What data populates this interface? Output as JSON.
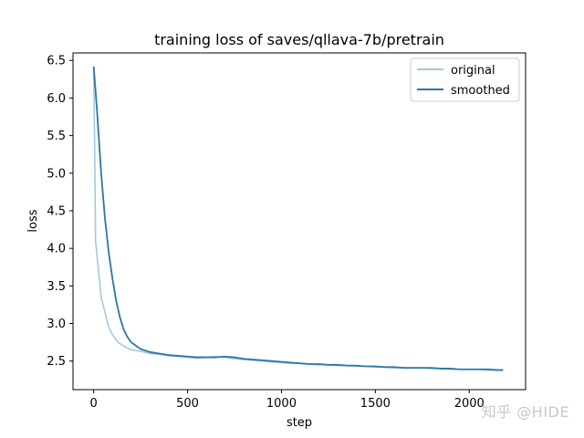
{
  "chart_data": {
    "type": "line",
    "title": "training loss of saves/qllava-7b/pretrain",
    "xlabel": "step",
    "ylabel": "loss",
    "xlim": [
      -110,
      2300
    ],
    "ylim": [
      2.12,
      6.6
    ],
    "xticks": [
      0,
      500,
      1000,
      1500,
      2000
    ],
    "yticks": [
      2.5,
      3.0,
      3.5,
      4.0,
      4.5,
      5.0,
      5.5,
      6.0,
      6.5
    ],
    "ytick_labels": [
      "2.5",
      "3.0",
      "3.5",
      "4.0",
      "4.5",
      "5.0",
      "5.5",
      "6.0",
      "6.5"
    ],
    "legend_position": "upper-right",
    "series": [
      {
        "name": "original",
        "color": "#a6c8dc",
        "x": [
          0,
          5,
          10,
          20,
          30,
          40,
          60,
          80,
          100,
          130,
          160,
          200,
          250,
          300,
          350,
          400,
          450,
          500,
          550,
          600,
          650,
          700,
          750,
          800,
          850,
          900,
          950,
          1000,
          1050,
          1100,
          1150,
          1200,
          1250,
          1300,
          1350,
          1400,
          1450,
          1500,
          1550,
          1600,
          1650,
          1700,
          1750,
          1800,
          1850,
          1900,
          1950,
          2000,
          2050,
          2100,
          2150,
          2180
        ],
        "values": [
          6.4,
          5.4,
          4.1,
          3.85,
          3.6,
          3.35,
          3.15,
          2.95,
          2.85,
          2.75,
          2.7,
          2.65,
          2.63,
          2.6,
          2.59,
          2.57,
          2.56,
          2.55,
          2.54,
          2.55,
          2.56,
          2.55,
          2.53,
          2.52,
          2.51,
          2.5,
          2.49,
          2.48,
          2.47,
          2.47,
          2.46,
          2.45,
          2.45,
          2.44,
          2.44,
          2.43,
          2.43,
          2.42,
          2.42,
          2.41,
          2.41,
          2.41,
          2.41,
          2.4,
          2.4,
          2.39,
          2.39,
          2.39,
          2.39,
          2.38,
          2.38,
          2.38
        ]
      },
      {
        "name": "smoothed",
        "color": "#2a77a8",
        "x": [
          0,
          10,
          20,
          40,
          60,
          80,
          100,
          120,
          140,
          160,
          180,
          200,
          250,
          300,
          350,
          400,
          450,
          500,
          550,
          600,
          650,
          700,
          750,
          800,
          850,
          900,
          950,
          1000,
          1050,
          1100,
          1150,
          1200,
          1250,
          1300,
          1350,
          1400,
          1450,
          1500,
          1550,
          1600,
          1650,
          1700,
          1750,
          1800,
          1850,
          1900,
          1950,
          2000,
          2050,
          2100,
          2150,
          2180
        ],
        "values": [
          6.42,
          6.1,
          5.75,
          5.0,
          4.4,
          3.95,
          3.6,
          3.3,
          3.08,
          2.92,
          2.82,
          2.75,
          2.66,
          2.62,
          2.6,
          2.58,
          2.57,
          2.56,
          2.55,
          2.55,
          2.55,
          2.56,
          2.55,
          2.53,
          2.52,
          2.51,
          2.5,
          2.49,
          2.48,
          2.47,
          2.46,
          2.46,
          2.45,
          2.45,
          2.44,
          2.44,
          2.43,
          2.43,
          2.42,
          2.42,
          2.41,
          2.41,
          2.41,
          2.41,
          2.4,
          2.4,
          2.39,
          2.39,
          2.39,
          2.39,
          2.38,
          2.38
        ]
      }
    ]
  },
  "watermark": "知乎 @HIDE"
}
